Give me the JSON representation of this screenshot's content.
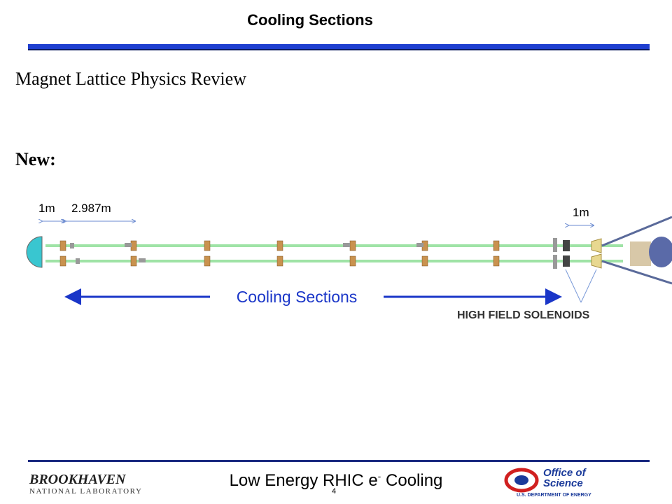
{
  "header": {
    "title": "Cooling Sections"
  },
  "body": {
    "heading": "Magnet Lattice Physics Review",
    "label": "New:"
  },
  "diagram": {
    "dim_left": "1m",
    "dim_span": "2.987m",
    "dim_right": "1m",
    "section_label": "Cooling Sections",
    "solenoid_label": "HIGH FIELD SOLENOIDS"
  },
  "footer": {
    "title_main": "Low Energy RHIC e",
    "title_sup": "-",
    "title_end": "Cooling",
    "page": "4",
    "logo_left": {
      "name": "BROOKHAVEN",
      "sub": "NATIONAL LABORATORY"
    },
    "logo_right": {
      "line1": "Office of",
      "line2": "Science",
      "sub": "U.S. DEPARTMENT OF ENERGY"
    }
  }
}
